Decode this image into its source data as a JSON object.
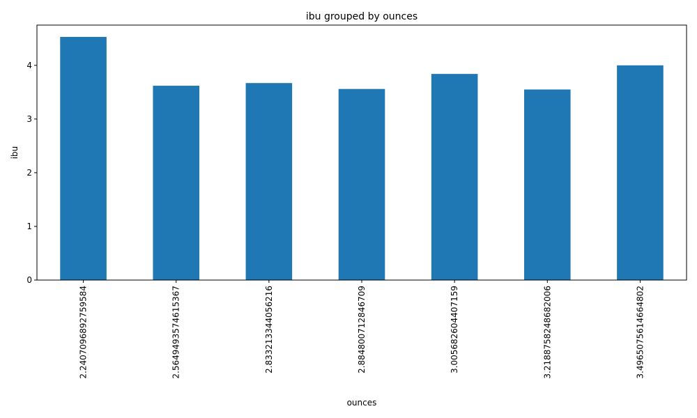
{
  "chart_data": {
    "type": "bar",
    "title": "ibu grouped by ounces",
    "xlabel": "ounces",
    "ylabel": "ibu",
    "categories": [
      "2.2407096892759584",
      "2.5649493574615367",
      "2.833213344056216",
      "2.884800712846709",
      "3.005682604407159",
      "3.218875824868200 6",
      "3.4965075614664802"
    ],
    "values": [
      4.53,
      3.62,
      3.67,
      3.56,
      3.84,
      3.55,
      4.0
    ],
    "ylim": [
      0,
      4.75
    ],
    "yticks": [
      "0",
      "1",
      "2",
      "3",
      "4"
    ],
    "bar_color": "#1f77b4",
    "grid": false,
    "legend": "none"
  }
}
